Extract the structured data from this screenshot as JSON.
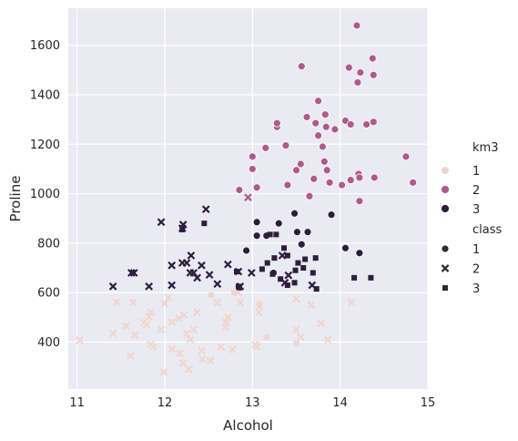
{
  "chart_data": {
    "type": "scatter",
    "xlabel": "Alcohol",
    "ylabel": "Proline",
    "xlim": [
      10.9,
      15.0
    ],
    "ylim": [
      210,
      1750
    ],
    "xticks": [
      11,
      12,
      13,
      14,
      15
    ],
    "yticks": [
      400,
      600,
      800,
      1000,
      1200,
      1400,
      1600
    ],
    "grid": true,
    "background": "#eaeaf2",
    "legend": {
      "placement": "right",
      "hue_title": "km3",
      "hue_entries": [
        {
          "label": "1",
          "color": "#f0d6cf"
        },
        {
          "label": "2",
          "color": "#b0598d"
        },
        {
          "label": "3",
          "color": "#2d1e3e"
        }
      ],
      "style_title": "class",
      "style_entries": [
        {
          "label": "1",
          "marker": "circle"
        },
        {
          "label": "2",
          "marker": "x"
        },
        {
          "label": "3",
          "marker": "square"
        }
      ]
    },
    "points": [
      {
        "x": 12.85,
        "y": 1015,
        "km3": 2,
        "class": 1
      },
      {
        "x": 13.0,
        "y": 1150,
        "km3": 2,
        "class": 1
      },
      {
        "x": 13.0,
        "y": 1100,
        "km3": 2,
        "class": 1
      },
      {
        "x": 13.05,
        "y": 1025,
        "km3": 2,
        "class": 1
      },
      {
        "x": 13.15,
        "y": 1185,
        "km3": 2,
        "class": 1
      },
      {
        "x": 13.28,
        "y": 1270,
        "km3": 2,
        "class": 1
      },
      {
        "x": 13.28,
        "y": 1285,
        "km3": 2,
        "class": 1
      },
      {
        "x": 13.38,
        "y": 1195,
        "km3": 2,
        "class": 1
      },
      {
        "x": 13.4,
        "y": 1035,
        "km3": 2,
        "class": 1
      },
      {
        "x": 13.5,
        "y": 1095,
        "km3": 2,
        "class": 1
      },
      {
        "x": 13.55,
        "y": 1120,
        "km3": 2,
        "class": 1
      },
      {
        "x": 13.56,
        "y": 1515,
        "km3": 2,
        "class": 1
      },
      {
        "x": 13.62,
        "y": 1310,
        "km3": 2,
        "class": 1
      },
      {
        "x": 13.65,
        "y": 990,
        "km3": 2,
        "class": 1
      },
      {
        "x": 13.7,
        "y": 1060,
        "km3": 2,
        "class": 1
      },
      {
        "x": 13.72,
        "y": 1285,
        "km3": 2,
        "class": 1
      },
      {
        "x": 13.75,
        "y": 1235,
        "km3": 2,
        "class": 1
      },
      {
        "x": 13.75,
        "y": 1375,
        "km3": 2,
        "class": 1
      },
      {
        "x": 13.8,
        "y": 1190,
        "km3": 2,
        "class": 1
      },
      {
        "x": 13.82,
        "y": 1130,
        "km3": 2,
        "class": 1
      },
      {
        "x": 13.84,
        "y": 1270,
        "km3": 2,
        "class": 1
      },
      {
        "x": 13.83,
        "y": 1320,
        "km3": 2,
        "class": 1
      },
      {
        "x": 13.85,
        "y": 1095,
        "km3": 2,
        "class": 1
      },
      {
        "x": 13.88,
        "y": 1045,
        "km3": 2,
        "class": 1
      },
      {
        "x": 13.94,
        "y": 1260,
        "km3": 2,
        "class": 1
      },
      {
        "x": 14.02,
        "y": 1035,
        "km3": 2,
        "class": 1
      },
      {
        "x": 14.06,
        "y": 1295,
        "km3": 2,
        "class": 1
      },
      {
        "x": 14.1,
        "y": 1510,
        "km3": 2,
        "class": 1
      },
      {
        "x": 14.12,
        "y": 1280,
        "km3": 2,
        "class": 1
      },
      {
        "x": 14.12,
        "y": 1055,
        "km3": 2,
        "class": 1
      },
      {
        "x": 14.19,
        "y": 1680,
        "km3": 2,
        "class": 1
      },
      {
        "x": 14.2,
        "y": 1450,
        "km3": 2,
        "class": 1
      },
      {
        "x": 14.21,
        "y": 1080,
        "km3": 2,
        "class": 1
      },
      {
        "x": 14.22,
        "y": 1065,
        "km3": 2,
        "class": 1
      },
      {
        "x": 14.22,
        "y": 970,
        "km3": 2,
        "class": 1
      },
      {
        "x": 14.23,
        "y": 1490,
        "km3": 2,
        "class": 1
      },
      {
        "x": 14.3,
        "y": 1280,
        "km3": 2,
        "class": 1
      },
      {
        "x": 14.37,
        "y": 1547,
        "km3": 2,
        "class": 1
      },
      {
        "x": 14.38,
        "y": 1480,
        "km3": 2,
        "class": 1
      },
      {
        "x": 14.38,
        "y": 1290,
        "km3": 2,
        "class": 1
      },
      {
        "x": 14.39,
        "y": 1065,
        "km3": 2,
        "class": 1
      },
      {
        "x": 14.75,
        "y": 1150,
        "km3": 2,
        "class": 1
      },
      {
        "x": 14.83,
        "y": 1045,
        "km3": 2,
        "class": 1
      },
      {
        "x": 12.93,
        "y": 770,
        "km3": 3,
        "class": 1
      },
      {
        "x": 13.05,
        "y": 885,
        "km3": 3,
        "class": 1
      },
      {
        "x": 13.05,
        "y": 830,
        "km3": 3,
        "class": 1
      },
      {
        "x": 13.16,
        "y": 830,
        "km3": 3,
        "class": 1
      },
      {
        "x": 13.24,
        "y": 680,
        "km3": 3,
        "class": 1
      },
      {
        "x": 13.3,
        "y": 880,
        "km3": 3,
        "class": 1
      },
      {
        "x": 13.48,
        "y": 920,
        "km3": 3,
        "class": 1
      },
      {
        "x": 13.51,
        "y": 845,
        "km3": 3,
        "class": 1
      },
      {
        "x": 13.56,
        "y": 795,
        "km3": 3,
        "class": 1
      },
      {
        "x": 13.63,
        "y": 845,
        "km3": 3,
        "class": 1
      },
      {
        "x": 13.9,
        "y": 915,
        "km3": 3,
        "class": 1
      },
      {
        "x": 14.06,
        "y": 780,
        "km3": 3,
        "class": 1
      },
      {
        "x": 14.22,
        "y": 760,
        "km3": 3,
        "class": 1
      },
      {
        "x": 12.95,
        "y": 985,
        "km3": 2,
        "class": 2
      },
      {
        "x": 11.96,
        "y": 885,
        "km3": 3,
        "class": 2
      },
      {
        "x": 12.2,
        "y": 860,
        "km3": 3,
        "class": 2
      },
      {
        "x": 12.21,
        "y": 875,
        "km3": 3,
        "class": 2
      },
      {
        "x": 12.47,
        "y": 937,
        "km3": 3,
        "class": 2
      },
      {
        "x": 11.62,
        "y": 680,
        "km3": 3,
        "class": 2
      },
      {
        "x": 11.65,
        "y": 680,
        "km3": 3,
        "class": 2
      },
      {
        "x": 11.82,
        "y": 625,
        "km3": 3,
        "class": 2
      },
      {
        "x": 12.08,
        "y": 710,
        "km3": 3,
        "class": 2
      },
      {
        "x": 12.08,
        "y": 630,
        "km3": 3,
        "class": 2
      },
      {
        "x": 12.2,
        "y": 720,
        "km3": 3,
        "class": 2
      },
      {
        "x": 12.25,
        "y": 720,
        "km3": 3,
        "class": 2
      },
      {
        "x": 12.29,
        "y": 680,
        "km3": 3,
        "class": 2
      },
      {
        "x": 12.33,
        "y": 680,
        "km3": 3,
        "class": 2
      },
      {
        "x": 12.37,
        "y": 660,
        "km3": 3,
        "class": 2
      },
      {
        "x": 12.42,
        "y": 710,
        "km3": 3,
        "class": 2
      },
      {
        "x": 12.51,
        "y": 672,
        "km3": 3,
        "class": 2
      },
      {
        "x": 12.6,
        "y": 635,
        "km3": 3,
        "class": 2
      },
      {
        "x": 12.72,
        "y": 714,
        "km3": 3,
        "class": 2
      },
      {
        "x": 12.84,
        "y": 685,
        "km3": 3,
        "class": 2
      },
      {
        "x": 12.86,
        "y": 625,
        "km3": 3,
        "class": 2
      },
      {
        "x": 11.41,
        "y": 625,
        "km3": 3,
        "class": 2
      },
      {
        "x": 12.3,
        "y": 750,
        "km3": 3,
        "class": 2
      },
      {
        "x": 12.99,
        "y": 680,
        "km3": 3,
        "class": 2
      },
      {
        "x": 13.34,
        "y": 750,
        "km3": 3,
        "class": 2
      },
      {
        "x": 13.37,
        "y": 640,
        "km3": 3,
        "class": 2
      },
      {
        "x": 13.41,
        "y": 670,
        "km3": 3,
        "class": 2
      },
      {
        "x": 13.68,
        "y": 630,
        "km3": 3,
        "class": 2
      },
      {
        "x": 11.03,
        "y": 407,
        "km3": 1,
        "class": 2
      },
      {
        "x": 11.41,
        "y": 434,
        "km3": 1,
        "class": 2
      },
      {
        "x": 11.45,
        "y": 562,
        "km3": 1,
        "class": 2
      },
      {
        "x": 11.56,
        "y": 465,
        "km3": 1,
        "class": 2
      },
      {
        "x": 11.61,
        "y": 345,
        "km3": 1,
        "class": 2
      },
      {
        "x": 11.64,
        "y": 560,
        "km3": 1,
        "class": 2
      },
      {
        "x": 11.66,
        "y": 428,
        "km3": 1,
        "class": 2
      },
      {
        "x": 11.76,
        "y": 480,
        "km3": 1,
        "class": 2
      },
      {
        "x": 11.79,
        "y": 470,
        "km3": 1,
        "class": 2
      },
      {
        "x": 11.82,
        "y": 502,
        "km3": 1,
        "class": 2
      },
      {
        "x": 11.84,
        "y": 520,
        "km3": 1,
        "class": 2
      },
      {
        "x": 11.87,
        "y": 380,
        "km3": 1,
        "class": 2
      },
      {
        "x": 11.96,
        "y": 450,
        "km3": 1,
        "class": 2
      },
      {
        "x": 11.99,
        "y": 278,
        "km3": 1,
        "class": 2
      },
      {
        "x": 12.0,
        "y": 555,
        "km3": 1,
        "class": 2
      },
      {
        "x": 12.04,
        "y": 580,
        "km3": 1,
        "class": 2
      },
      {
        "x": 12.08,
        "y": 480,
        "km3": 1,
        "class": 2
      },
      {
        "x": 12.08,
        "y": 372,
        "km3": 1,
        "class": 2
      },
      {
        "x": 12.16,
        "y": 495,
        "km3": 1,
        "class": 2
      },
      {
        "x": 12.17,
        "y": 355,
        "km3": 1,
        "class": 2
      },
      {
        "x": 12.21,
        "y": 315,
        "km3": 1,
        "class": 2
      },
      {
        "x": 12.22,
        "y": 510,
        "km3": 1,
        "class": 2
      },
      {
        "x": 12.25,
        "y": 435,
        "km3": 1,
        "class": 2
      },
      {
        "x": 12.27,
        "y": 290,
        "km3": 1,
        "class": 2
      },
      {
        "x": 12.29,
        "y": 410,
        "km3": 1,
        "class": 2
      },
      {
        "x": 12.33,
        "y": 450,
        "km3": 1,
        "class": 2
      },
      {
        "x": 12.37,
        "y": 520,
        "km3": 1,
        "class": 2
      },
      {
        "x": 12.42,
        "y": 365,
        "km3": 1,
        "class": 2
      },
      {
        "x": 12.43,
        "y": 330,
        "km3": 1,
        "class": 2
      },
      {
        "x": 12.52,
        "y": 325,
        "km3": 1,
        "class": 2
      },
      {
        "x": 12.6,
        "y": 560,
        "km3": 1,
        "class": 2
      },
      {
        "x": 12.64,
        "y": 380,
        "km3": 1,
        "class": 2
      },
      {
        "x": 12.69,
        "y": 460,
        "km3": 1,
        "class": 2
      },
      {
        "x": 12.7,
        "y": 480,
        "km3": 1,
        "class": 2
      },
      {
        "x": 12.72,
        "y": 500,
        "km3": 1,
        "class": 2
      },
      {
        "x": 12.77,
        "y": 370,
        "km3": 1,
        "class": 2
      },
      {
        "x": 12.84,
        "y": 600,
        "km3": 1,
        "class": 2
      },
      {
        "x": 12.86,
        "y": 560,
        "km3": 1,
        "class": 2
      },
      {
        "x": 13.03,
        "y": 390,
        "km3": 1,
        "class": 2
      },
      {
        "x": 13.05,
        "y": 380,
        "km3": 1,
        "class": 2
      },
      {
        "x": 13.07,
        "y": 520,
        "km3": 1,
        "class": 2
      },
      {
        "x": 13.08,
        "y": 545,
        "km3": 1,
        "class": 2
      },
      {
        "x": 13.5,
        "y": 575,
        "km3": 1,
        "class": 2
      },
      {
        "x": 13.5,
        "y": 450,
        "km3": 1,
        "class": 2
      },
      {
        "x": 13.55,
        "y": 420,
        "km3": 1,
        "class": 2
      },
      {
        "x": 13.67,
        "y": 550,
        "km3": 1,
        "class": 2
      },
      {
        "x": 13.78,
        "y": 475,
        "km3": 1,
        "class": 2
      },
      {
        "x": 13.86,
        "y": 410,
        "km3": 1,
        "class": 2
      },
      {
        "x": 14.13,
        "y": 560,
        "km3": 1,
        "class": 2
      },
      {
        "x": 11.84,
        "y": 390,
        "km3": 1,
        "class": 2
      },
      {
        "x": 12.45,
        "y": 880,
        "km3": 3,
        "class": 3
      },
      {
        "x": 12.2,
        "y": 855,
        "km3": 3,
        "class": 3
      },
      {
        "x": 13.2,
        "y": 835,
        "km3": 3,
        "class": 3
      },
      {
        "x": 13.27,
        "y": 835,
        "km3": 3,
        "class": 3
      },
      {
        "x": 13.36,
        "y": 780,
        "km3": 3,
        "class": 3
      },
      {
        "x": 13.4,
        "y": 750,
        "km3": 3,
        "class": 3
      },
      {
        "x": 13.17,
        "y": 720,
        "km3": 3,
        "class": 3
      },
      {
        "x": 13.25,
        "y": 740,
        "km3": 3,
        "class": 3
      },
      {
        "x": 13.23,
        "y": 675,
        "km3": 3,
        "class": 3
      },
      {
        "x": 12.82,
        "y": 685,
        "km3": 3,
        "class": 3
      },
      {
        "x": 12.84,
        "y": 625,
        "km3": 3,
        "class": 3
      },
      {
        "x": 12.85,
        "y": 620,
        "km3": 3,
        "class": 3
      },
      {
        "x": 13.11,
        "y": 695,
        "km3": 3,
        "class": 3
      },
      {
        "x": 13.32,
        "y": 655,
        "km3": 3,
        "class": 3
      },
      {
        "x": 13.4,
        "y": 630,
        "km3": 3,
        "class": 3
      },
      {
        "x": 13.48,
        "y": 640,
        "km3": 3,
        "class": 3
      },
      {
        "x": 13.52,
        "y": 720,
        "km3": 3,
        "class": 3
      },
      {
        "x": 13.58,
        "y": 700,
        "km3": 3,
        "class": 3
      },
      {
        "x": 13.6,
        "y": 735,
        "km3": 3,
        "class": 3
      },
      {
        "x": 13.69,
        "y": 680,
        "km3": 3,
        "class": 3
      },
      {
        "x": 13.72,
        "y": 740,
        "km3": 3,
        "class": 3
      },
      {
        "x": 13.73,
        "y": 615,
        "km3": 3,
        "class": 3
      },
      {
        "x": 14.16,
        "y": 660,
        "km3": 3,
        "class": 3
      },
      {
        "x": 14.35,
        "y": 660,
        "km3": 3,
        "class": 3
      },
      {
        "x": 13.49,
        "y": 690,
        "km3": 3,
        "class": 3
      },
      {
        "x": 12.53,
        "y": 590,
        "km3": 1,
        "class": 3
      },
      {
        "x": 12.79,
        "y": 600,
        "km3": 1,
        "class": 3
      },
      {
        "x": 13.08,
        "y": 555,
        "km3": 1,
        "class": 3
      },
      {
        "x": 13.16,
        "y": 420,
        "km3": 1,
        "class": 3
      },
      {
        "x": 13.5,
        "y": 395,
        "km3": 1,
        "class": 3
      }
    ]
  }
}
